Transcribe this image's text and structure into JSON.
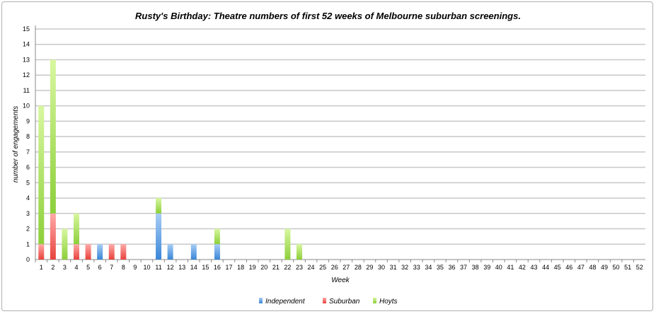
{
  "chart_data": {
    "type": "bar",
    "stacked": true,
    "title": "Rusty's Birthday: Theatre numbers of first 52 weeks of Melbourne suburban screenings.",
    "xlabel": "Week",
    "ylabel": "number of engagements",
    "ylim": [
      0,
      15
    ],
    "grid": true,
    "legend": "bottom",
    "categories": [
      "1",
      "2",
      "3",
      "4",
      "5",
      "6",
      "7",
      "8",
      "9",
      "10",
      "11",
      "12",
      "13",
      "14",
      "15",
      "16",
      "17",
      "18",
      "19",
      "20",
      "21",
      "22",
      "23",
      "24",
      "25",
      "26",
      "27",
      "28",
      "29",
      "30",
      "31",
      "32",
      "33",
      "34",
      "35",
      "36",
      "37",
      "38",
      "39",
      "40",
      "41",
      "42",
      "43",
      "44",
      "45",
      "46",
      "47",
      "48",
      "49",
      "50",
      "51",
      "52"
    ],
    "yticks": [
      "0",
      "1",
      "2",
      "3",
      "4",
      "5",
      "6",
      "7",
      "8",
      "9",
      "10",
      "11",
      "12",
      "13",
      "14",
      "15"
    ],
    "series": [
      {
        "name": "Independent",
        "color": "#4a90d9",
        "values": [
          0,
          0,
          0,
          0,
          0,
          1,
          0,
          0,
          0,
          0,
          3,
          1,
          0,
          1,
          0,
          1,
          0,
          0,
          0,
          0,
          0,
          0,
          0,
          0,
          0,
          0,
          0,
          0,
          0,
          0,
          0,
          0,
          0,
          0,
          0,
          0,
          0,
          0,
          0,
          0,
          0,
          0,
          0,
          0,
          0,
          0,
          0,
          0,
          0,
          0,
          0,
          0
        ]
      },
      {
        "name": "Suburban",
        "color": "#f05a55",
        "values": [
          1,
          3,
          0,
          1,
          1,
          0,
          1,
          1,
          0,
          0,
          0,
          0,
          0,
          0,
          0,
          0,
          0,
          0,
          0,
          0,
          0,
          0,
          0,
          0,
          0,
          0,
          0,
          0,
          0,
          0,
          0,
          0,
          0,
          0,
          0,
          0,
          0,
          0,
          0,
          0,
          0,
          0,
          0,
          0,
          0,
          0,
          0,
          0,
          0,
          0,
          0,
          0
        ]
      },
      {
        "name": "Hoyts",
        "color": "#9ad84a",
        "values": [
          9,
          10,
          2,
          2,
          0,
          0,
          0,
          0,
          0,
          0,
          1,
          0,
          0,
          0,
          0,
          1,
          0,
          0,
          0,
          0,
          0,
          2,
          1,
          0,
          0,
          0,
          0,
          0,
          0,
          0,
          0,
          0,
          0,
          0,
          0,
          0,
          0,
          0,
          0,
          0,
          0,
          0,
          0,
          0,
          0,
          0,
          0,
          0,
          0,
          0,
          0,
          0
        ]
      }
    ]
  }
}
